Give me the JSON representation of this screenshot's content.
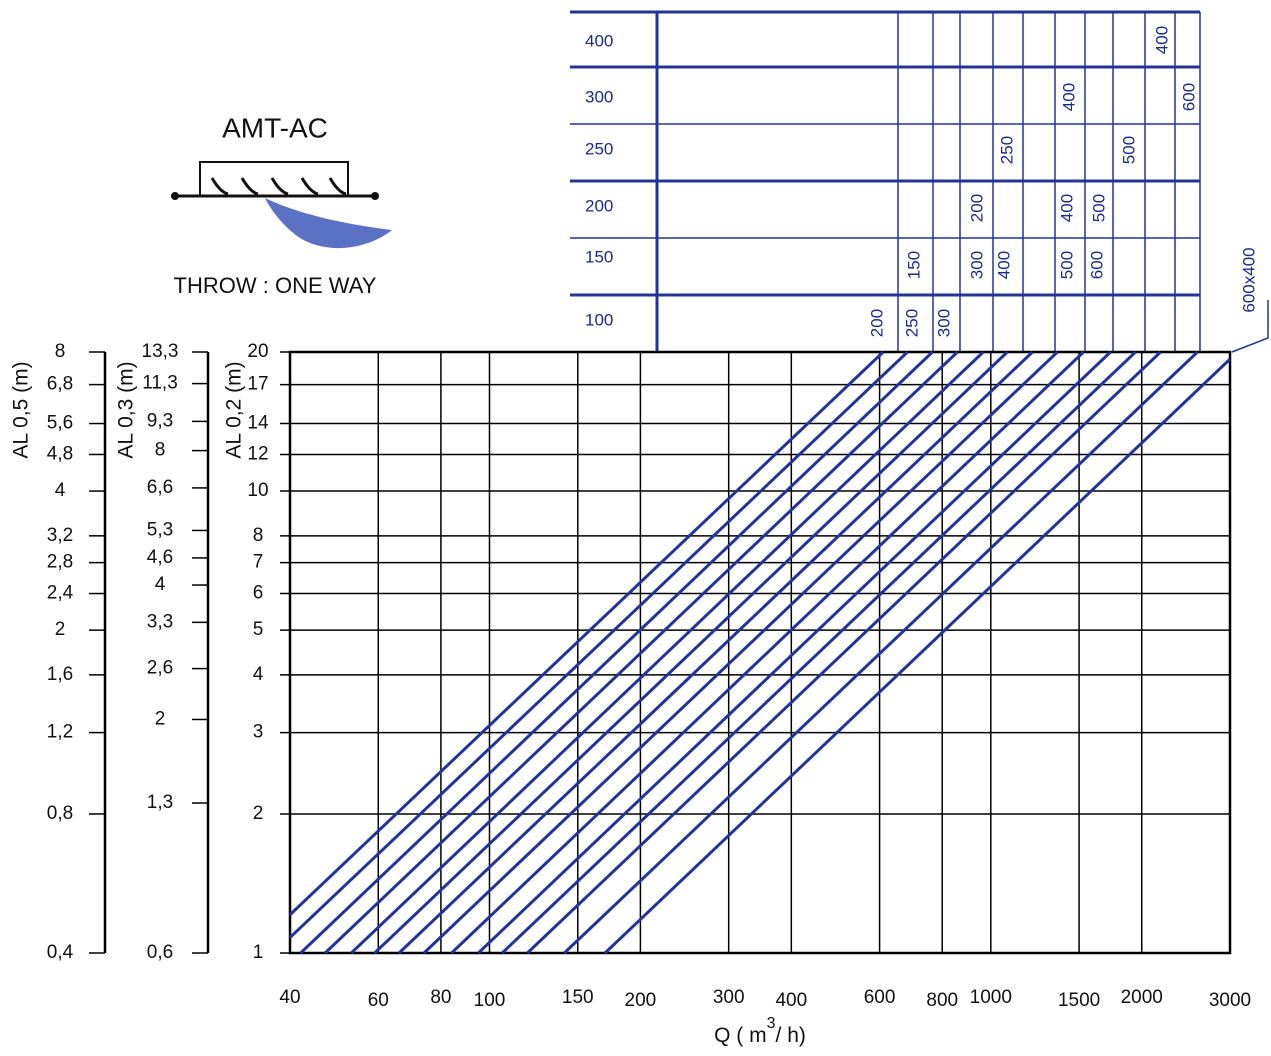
{
  "header": {
    "title": "AMT-AC",
    "subtitle": "THROW : ONE WAY"
  },
  "duct_table": {
    "rows": [
      {
        "label": "400",
        "labels": [
          "400"
        ]
      },
      {
        "label": "300",
        "labels": [
          "400",
          "600"
        ]
      },
      {
        "label": "250",
        "labels": [
          "250",
          "500"
        ]
      },
      {
        "label": "200",
        "labels": [
          "200",
          "400",
          "500"
        ]
      },
      {
        "label": "150",
        "labels": [
          "150",
          "300",
          "400",
          "500",
          "600"
        ]
      },
      {
        "label": "100",
        "labels": [
          "200",
          "250",
          "300"
        ]
      }
    ],
    "corner_label": "600x400"
  },
  "chart_data": {
    "type": "line",
    "x_scale": "log",
    "y_scale": "log",
    "grid": true,
    "color": "#23339a",
    "x_label": {
      "main": "Q ( m",
      "sup": "3",
      "end": "/ h)"
    },
    "y_label": "AL 0,2 (m)",
    "xlim": [
      40,
      3000
    ],
    "xticks": [
      40,
      60,
      80,
      100,
      150,
      200,
      300,
      400,
      600,
      800,
      1000,
      1500,
      2000,
      3000
    ],
    "ylim": [
      1,
      20
    ],
    "yticks": [
      1,
      2,
      3,
      4,
      5,
      6,
      7,
      8,
      10,
      12,
      14,
      17,
      20
    ],
    "extra_y_axes": [
      {
        "label": "AL 0,3 (m)",
        "ylim": [
          0.6,
          13.3
        ],
        "yticks": [
          {
            "value": 0.6,
            "label": "0,6"
          },
          {
            "value": 1.3,
            "label": "1,3"
          },
          2,
          {
            "value": 2.6,
            "label": "2,6"
          },
          {
            "value": 3.3,
            "label": "3,3"
          },
          4,
          {
            "value": 4.6,
            "label": "4,6"
          },
          {
            "value": 5.3,
            "label": "5,3"
          },
          {
            "value": 6.6,
            "label": "6,6"
          },
          8,
          {
            "value": 9.3,
            "label": "9,3"
          },
          {
            "value": 11.3,
            "label": "11,3"
          },
          {
            "value": 13.3,
            "label": "13,3"
          }
        ]
      },
      {
        "label": "AL 0,5 (m)",
        "ylim": [
          0.4,
          8
        ],
        "yticks": [
          {
            "value": 0.4,
            "label": "0,4"
          },
          {
            "value": 0.8,
            "label": "0,8"
          },
          {
            "value": 1.2,
            "label": "1,2"
          },
          {
            "value": 1.6,
            "label": "1,6"
          },
          2,
          {
            "value": 2.4,
            "label": "2,4"
          },
          {
            "value": 2.8,
            "label": "2,8"
          },
          {
            "value": 3.2,
            "label": "3,2"
          },
          4,
          {
            "value": 4.8,
            "label": "4,8"
          },
          {
            "value": 5.6,
            "label": "5,6"
          },
          {
            "value": 6.8,
            "label": "6,8"
          },
          8
        ]
      }
    ],
    "series": [
      {
        "x": [
          40,
          610
        ],
        "values": [
          1.21,
          20
        ]
      },
      {
        "x": [
          40,
          682
        ],
        "values": [
          1.08,
          20
        ]
      },
      {
        "x": [
          42,
          765
        ],
        "values": [
          1,
          20
        ]
      },
      {
        "x": [
          47,
          858
        ],
        "values": [
          1,
          20
        ]
      },
      {
        "x": [
          53,
          966
        ],
        "values": [
          1,
          20
        ]
      },
      {
        "x": [
          59,
          1079
        ],
        "values": [
          1,
          20
        ]
      },
      {
        "x": [
          66,
          1211
        ],
        "values": [
          1,
          20
        ]
      },
      {
        "x": [
          74,
          1358
        ],
        "values": [
          1,
          20
        ]
      },
      {
        "x": [
          84,
          1531
        ],
        "values": [
          1,
          20
        ]
      },
      {
        "x": [
          95,
          1733
        ],
        "values": [
          1,
          20
        ]
      },
      {
        "x": [
          106,
          1944
        ],
        "values": [
          1,
          20
        ]
      },
      {
        "x": [
          119,
          2181
        ],
        "values": [
          1,
          20
        ]
      },
      {
        "x": [
          141,
          2584
        ],
        "values": [
          1,
          20
        ]
      },
      {
        "x": [
          170,
          3000
        ],
        "values": [
          1,
          19.3
        ]
      }
    ]
  }
}
